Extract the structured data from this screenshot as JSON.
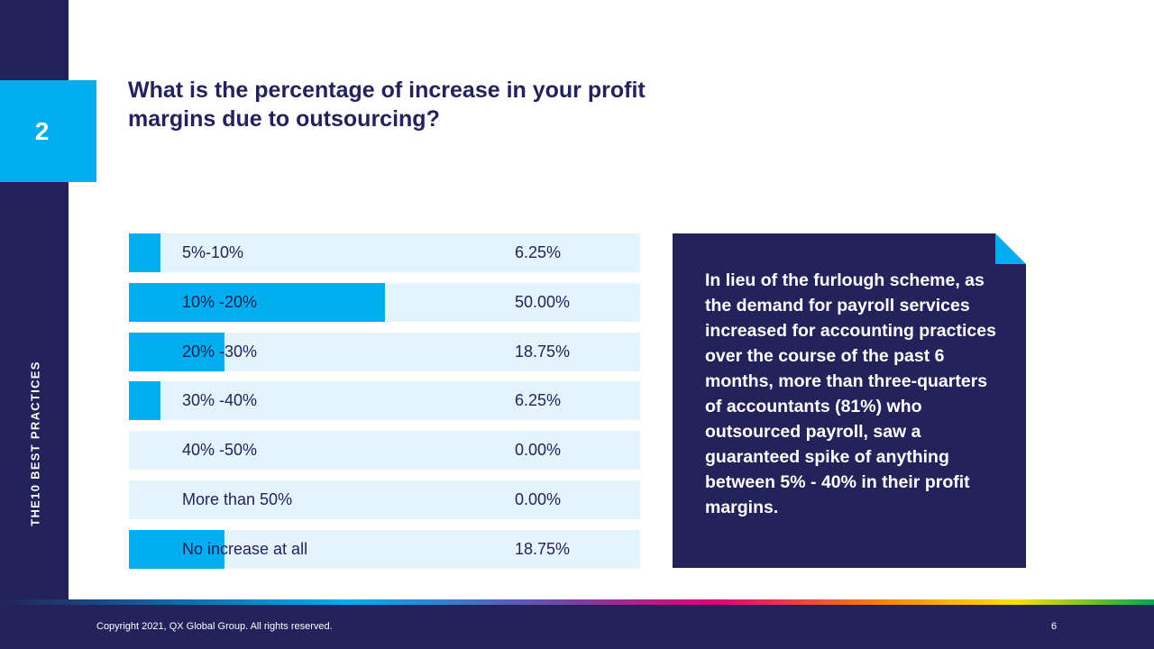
{
  "section_number": "2",
  "side_title": "THE10 BEST PRACTICES",
  "question": "What is the percentage of increase in your profit margins due to outsourcing?",
  "chart_data": {
    "type": "bar",
    "orientation": "horizontal",
    "categories": [
      "5%-10%",
      "10% -20%",
      "20% -30%",
      "30% -40%",
      "40% -50%",
      "More than 50%",
      "No increase at all"
    ],
    "values": [
      6.25,
      50.0,
      18.75,
      6.25,
      0.0,
      0.0,
      18.75
    ],
    "value_labels": [
      "6.25%",
      "50.00%",
      "18.75%",
      "6.25%",
      "0.00%",
      "0.00%",
      "18.75%"
    ],
    "xlim": [
      0,
      100
    ],
    "bar_color": "#00aeef",
    "track_color": "#e3f4fc"
  },
  "callout": {
    "text": "In lieu of the furlough scheme, as the demand for payroll services increased for accounting practices over the course of the past 6 months, more than three-quarters of accountants (81%) who outsourced payroll, saw a guaranteed spike of anything between 5% - 40% in their profit margins."
  },
  "footer": {
    "copyright": "Copyright 2021, QX Global Group. All rights reserved.",
    "page_number": "6"
  },
  "colors": {
    "navy": "#24225a",
    "accent": "#00aeef"
  }
}
